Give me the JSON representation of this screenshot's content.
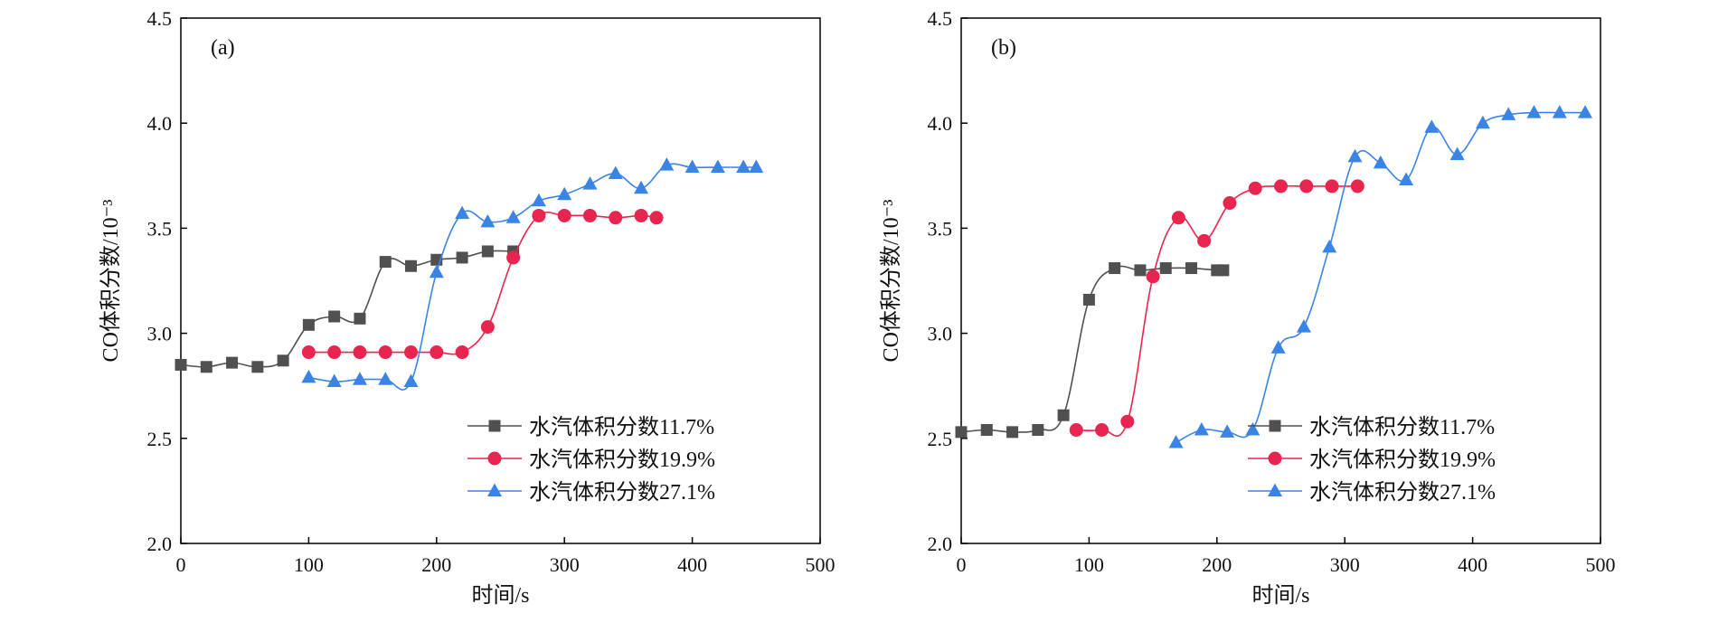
{
  "colors": {
    "series1": "#505050",
    "series2": "#e8254f",
    "series3": "#3a84e6"
  },
  "legend_labels": [
    "水汽体积分数11.7%",
    "水汽体积分数19.9%",
    "水汽体积分数27.1%"
  ],
  "chart_data": [
    {
      "type": "line",
      "panel_label": "(a)",
      "xlabel": "时间/s",
      "ylabel": "CO体积分数/10⁻³",
      "xlim": [
        0,
        500
      ],
      "ylim": [
        2.0,
        4.5
      ],
      "xticks": [
        "0",
        "100",
        "200",
        "300",
        "400",
        "500"
      ],
      "yticks": [
        "2.0",
        "2.5",
        "3.0",
        "3.5",
        "4.0",
        "4.5"
      ],
      "legend_position": "bottom-right",
      "series": [
        {
          "name": "水汽体积分数11.7%",
          "marker": "square",
          "points": [
            [
              0,
              2.85
            ],
            [
              20,
              2.84
            ],
            [
              40,
              2.86
            ],
            [
              60,
              2.84
            ],
            [
              80,
              2.87
            ],
            [
              100,
              3.04
            ],
            [
              120,
              3.08
            ],
            [
              140,
              3.07
            ],
            [
              160,
              3.34
            ],
            [
              180,
              3.32
            ],
            [
              200,
              3.35
            ],
            [
              220,
              3.36
            ],
            [
              240,
              3.39
            ],
            [
              260,
              3.39
            ]
          ]
        },
        {
          "name": "水汽体积分数19.9%",
          "marker": "circle",
          "points": [
            [
              100,
              2.91
            ],
            [
              120,
              2.91
            ],
            [
              140,
              2.91
            ],
            [
              160,
              2.91
            ],
            [
              180,
              2.91
            ],
            [
              200,
              2.91
            ],
            [
              220,
              2.91
            ],
            [
              240,
              3.03
            ],
            [
              260,
              3.36
            ],
            [
              280,
              3.56
            ],
            [
              300,
              3.56
            ],
            [
              320,
              3.56
            ],
            [
              340,
              3.55
            ],
            [
              360,
              3.56
            ],
            [
              372,
              3.55
            ]
          ]
        },
        {
          "name": "水汽体积分数27.1%",
          "marker": "triangle",
          "points": [
            [
              100,
              2.79
            ],
            [
              120,
              2.77
            ],
            [
              140,
              2.78
            ],
            [
              160,
              2.78
            ],
            [
              180,
              2.77
            ],
            [
              200,
              3.29
            ],
            [
              220,
              3.57
            ],
            [
              240,
              3.53
            ],
            [
              260,
              3.55
            ],
            [
              280,
              3.63
            ],
            [
              300,
              3.66
            ],
            [
              320,
              3.71
            ],
            [
              340,
              3.76
            ],
            [
              360,
              3.69
            ],
            [
              380,
              3.8
            ],
            [
              400,
              3.79
            ],
            [
              420,
              3.79
            ],
            [
              440,
              3.79
            ],
            [
              450,
              3.79
            ]
          ]
        }
      ]
    },
    {
      "type": "line",
      "panel_label": "(b)",
      "xlabel": "时间/s",
      "ylabel": "CO体积分数/10⁻³",
      "xlim": [
        0,
        500
      ],
      "ylim": [
        2.0,
        4.5
      ],
      "xticks": [
        "0",
        "100",
        "200",
        "300",
        "400",
        "500"
      ],
      "yticks": [
        "2.0",
        "2.5",
        "3.0",
        "3.5",
        "4.0",
        "4.5"
      ],
      "legend_position": "bottom-right",
      "series": [
        {
          "name": "水汽体积分数11.7%",
          "marker": "square",
          "points": [
            [
              0,
              2.53
            ],
            [
              20,
              2.54
            ],
            [
              40,
              2.53
            ],
            [
              60,
              2.54
            ],
            [
              80,
              2.61
            ],
            [
              100,
              3.16
            ],
            [
              120,
              3.31
            ],
            [
              140,
              3.3
            ],
            [
              160,
              3.31
            ],
            [
              180,
              3.31
            ],
            [
              200,
              3.3
            ],
            [
              205,
              3.3
            ]
          ]
        },
        {
          "name": "水汽体积分数19.9%",
          "marker": "circle",
          "points": [
            [
              90,
              2.54
            ],
            [
              110,
              2.54
            ],
            [
              130,
              2.58
            ],
            [
              150,
              3.27
            ],
            [
              170,
              3.55
            ],
            [
              190,
              3.44
            ],
            [
              210,
              3.62
            ],
            [
              230,
              3.69
            ],
            [
              250,
              3.7
            ],
            [
              270,
              3.7
            ],
            [
              290,
              3.7
            ],
            [
              310,
              3.7
            ]
          ]
        },
        {
          "name": "水汽体积分数27.1%",
          "marker": "triangle",
          "points": [
            [
              168,
              2.48
            ],
            [
              188,
              2.54
            ],
            [
              208,
              2.53
            ],
            [
              228,
              2.54
            ],
            [
              248,
              2.93
            ],
            [
              268,
              3.03
            ],
            [
              288,
              3.41
            ],
            [
              308,
              3.84
            ],
            [
              328,
              3.81
            ],
            [
              348,
              3.73
            ],
            [
              368,
              3.98
            ],
            [
              388,
              3.85
            ],
            [
              408,
              4.0
            ],
            [
              428,
              4.04
            ],
            [
              448,
              4.05
            ],
            [
              468,
              4.05
            ],
            [
              488,
              4.05
            ]
          ]
        }
      ]
    }
  ]
}
